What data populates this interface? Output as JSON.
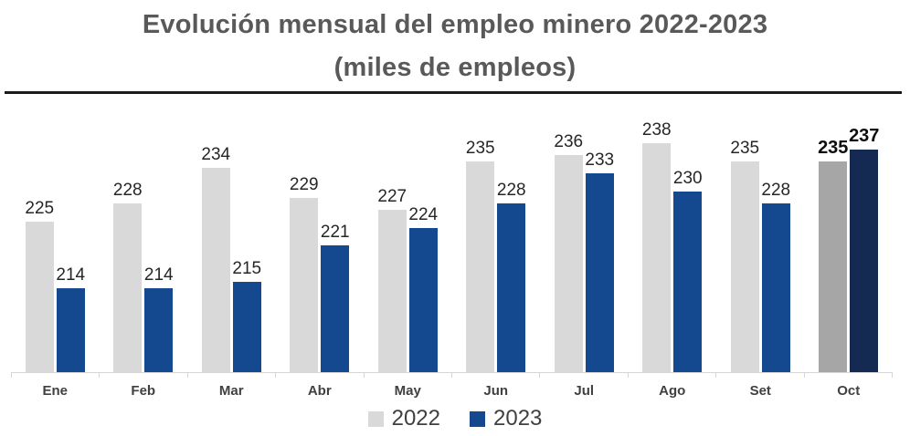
{
  "header": {
    "title_line1": "Evolución mensual del empleo minero 2022-2023",
    "title_line2": "(miles de empleos)"
  },
  "chart_data": {
    "type": "bar",
    "title": "Evolución mensual del empleo minero 2022-2023 (miles de empleos)",
    "categories": [
      "Ene",
      "Feb",
      "Mar",
      "Abr",
      "May",
      "Jun",
      "Jul",
      "Ago",
      "Set",
      "Oct"
    ],
    "series": [
      {
        "name": "2022",
        "values": [
          225,
          228,
          234,
          229,
          227,
          235,
          236,
          238,
          235,
          235
        ],
        "color": "#d9d9d9",
        "highlight_color": "#a6a6a6"
      },
      {
        "name": "2023",
        "values": [
          214,
          214,
          215,
          221,
          224,
          228,
          233,
          230,
          228,
          237
        ],
        "color": "#15498f",
        "highlight_color": "#152a52"
      }
    ],
    "highlight_category": "Oct",
    "data_labels": true,
    "grid": false,
    "legend_position": "bottom",
    "value_axis": {
      "min": 200,
      "axis_visible": false
    },
    "xlabel": "",
    "ylabel": ""
  },
  "colors": {
    "title": "#595959",
    "divider": "#1a1a1a",
    "data_label": "#262626",
    "highlight_label": "#0d0d0d",
    "axis_line": "#d6d6d6",
    "month_label": "#404040",
    "legend_text": "#404040"
  }
}
